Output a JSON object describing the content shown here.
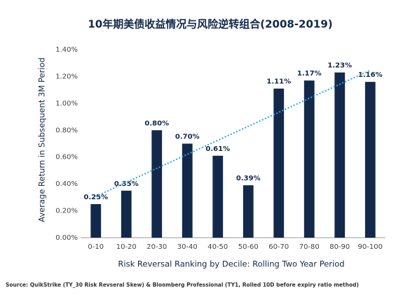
{
  "chart_data": {
    "type": "bar",
    "title": "10年期美债收益情况与风险逆转组合(2008-2019)",
    "x_label": "Risk Reversal Ranking by Decile: Rolling Two Year Period",
    "y_label": "Average Return in Subsequent 3M Period",
    "source": "Source: QuikStrike (TY_30 Risk Revseral Skew) & Bloomberg Professional (TY1, Rolled 10D before expiry ratio method)",
    "categories": [
      "0-10",
      "10-20",
      "20-30",
      "30-40",
      "40-50",
      "50-60",
      "60-70",
      "70-80",
      "80-90",
      "90-100"
    ],
    "values": [
      0.25,
      0.35,
      0.8,
      0.7,
      0.61,
      0.39,
      1.11,
      1.17,
      1.23,
      1.16
    ],
    "value_labels": [
      "0.25%",
      "0.35%",
      "0.80%",
      "0.70%",
      "0.61%",
      "0.39%",
      "1.11%",
      "1.17%",
      "1.23%",
      "1.16%"
    ],
    "color": "#13294b",
    "trendline": true,
    "trend_color": "#2aa8e0",
    "ylim": [
      0,
      1.4
    ],
    "yticks": [
      {
        "value": 0,
        "label": "0.00%"
      },
      {
        "value": 0.2,
        "label": "0.20%"
      },
      {
        "value": 0.4,
        "label": "0.40%"
      },
      {
        "value": 0.6,
        "label": "0.60%"
      },
      {
        "value": 0.8,
        "label": "0.80%"
      },
      {
        "value": 1.0,
        "label": "1.00%"
      },
      {
        "value": 1.2,
        "label": "1.20%"
      },
      {
        "value": 1.4,
        "label": "1.40%"
      }
    ]
  }
}
